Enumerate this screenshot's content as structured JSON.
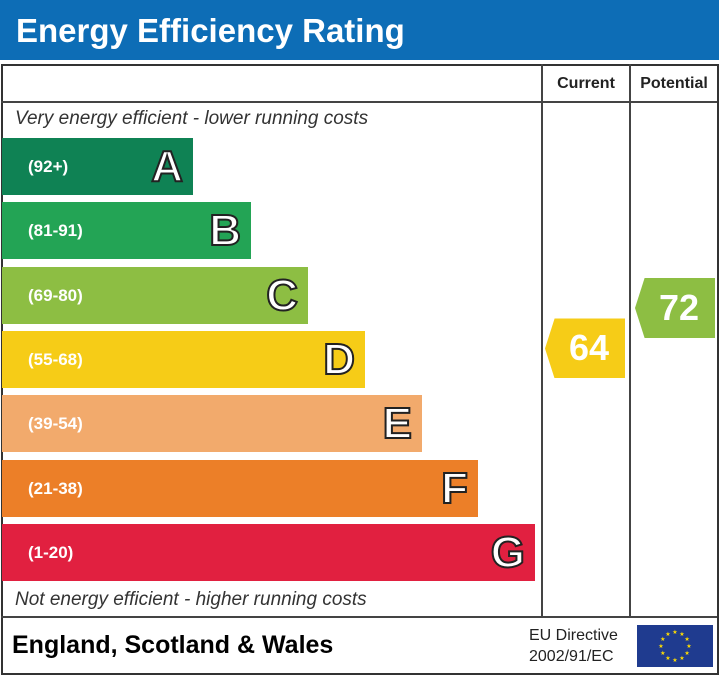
{
  "title": "Energy Efficiency Rating",
  "columns": {
    "current": "Current",
    "potential": "Potential"
  },
  "top_note": "Very energy efficient - lower running costs",
  "bottom_note": "Not energy efficient - higher running costs",
  "footer": {
    "region": "England, Scotland & Wales",
    "directive_line1": "EU Directive",
    "directive_line2": "2002/91/EC",
    "flag_icon": "eu-flag-icon"
  },
  "chart_data": {
    "type": "bar",
    "categories": [
      "A",
      "B",
      "C",
      "D",
      "E",
      "F",
      "G"
    ],
    "ranges": [
      "(92+)",
      "(81-91)",
      "(69-80)",
      "(55-68)",
      "(39-54)",
      "(21-38)",
      "(1-20)"
    ],
    "colors": [
      "#0f8254",
      "#23a455",
      "#8dbe43",
      "#f6cc17",
      "#f2aa6c",
      "#ec7f28",
      "#e12040"
    ],
    "current": {
      "value": 64,
      "band": "D",
      "color": "#f6cc17"
    },
    "potential": {
      "value": 72,
      "band": "C",
      "color": "#8dbe43"
    }
  }
}
